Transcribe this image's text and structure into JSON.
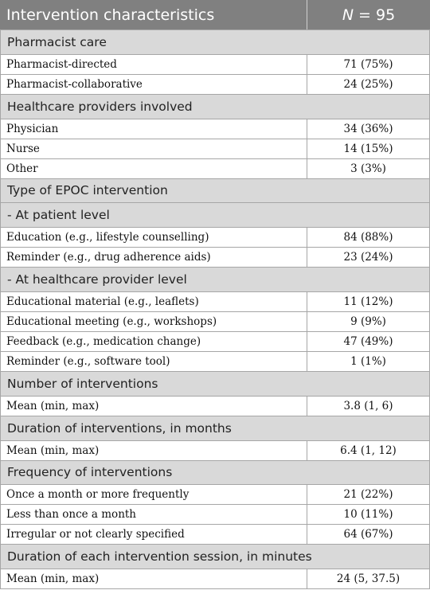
{
  "table": {
    "header": {
      "label": "Intervention characteristics",
      "n_symbol": "N",
      "n_value": "= 95"
    },
    "sections": [
      {
        "title": "Pharmacist care",
        "rows": [
          [
            "Pharmacist-directed",
            "71 (75%)"
          ],
          [
            "Pharmacist-collaborative",
            "24 (25%)"
          ]
        ]
      },
      {
        "title": "Healthcare providers involved",
        "rows": [
          [
            "Physician",
            "34 (36%)"
          ],
          [
            "Nurse",
            "14 (15%)"
          ],
          [
            "Other",
            "3 (3%)"
          ]
        ]
      },
      {
        "title": "Type of EPOC intervention"
      },
      {
        "title": "- At patient level",
        "rows": [
          [
            "Education (e.g., lifestyle counselling)",
            "84 (88%)"
          ],
          [
            "Reminder (e.g., drug adherence aids)",
            "23 (24%)"
          ]
        ]
      },
      {
        "title": "- At healthcare provider level",
        "rows": [
          [
            "Educational material (e.g., leaflets)",
            "11 (12%)"
          ],
          [
            "Educational meeting (e.g., workshops)",
            "9 (9%)"
          ],
          [
            "Feedback (e.g., medication change)",
            "47 (49%)"
          ],
          [
            "Reminder (e.g., software tool)",
            "1 (1%)"
          ]
        ]
      },
      {
        "title": "Number of interventions",
        "rows": [
          [
            "Mean (min, max)",
            "3.8 (1, 6)"
          ]
        ]
      },
      {
        "title": "Duration of interventions, in months",
        "rows": [
          [
            "Mean (min, max)",
            "6.4 (1, 12)"
          ]
        ]
      },
      {
        "title": "Frequency of interventions",
        "rows": [
          [
            "Once a month or more frequently",
            "21 (22%)"
          ],
          [
            "Less than once a month",
            "10 (11%)"
          ],
          [
            "Irregular or not clearly specified",
            "64 (67%)"
          ]
        ]
      },
      {
        "title": "Duration of each intervention session, in minutes",
        "rows": [
          [
            "Mean (min, max)",
            "24 (5, 37.5)"
          ]
        ]
      }
    ]
  }
}
